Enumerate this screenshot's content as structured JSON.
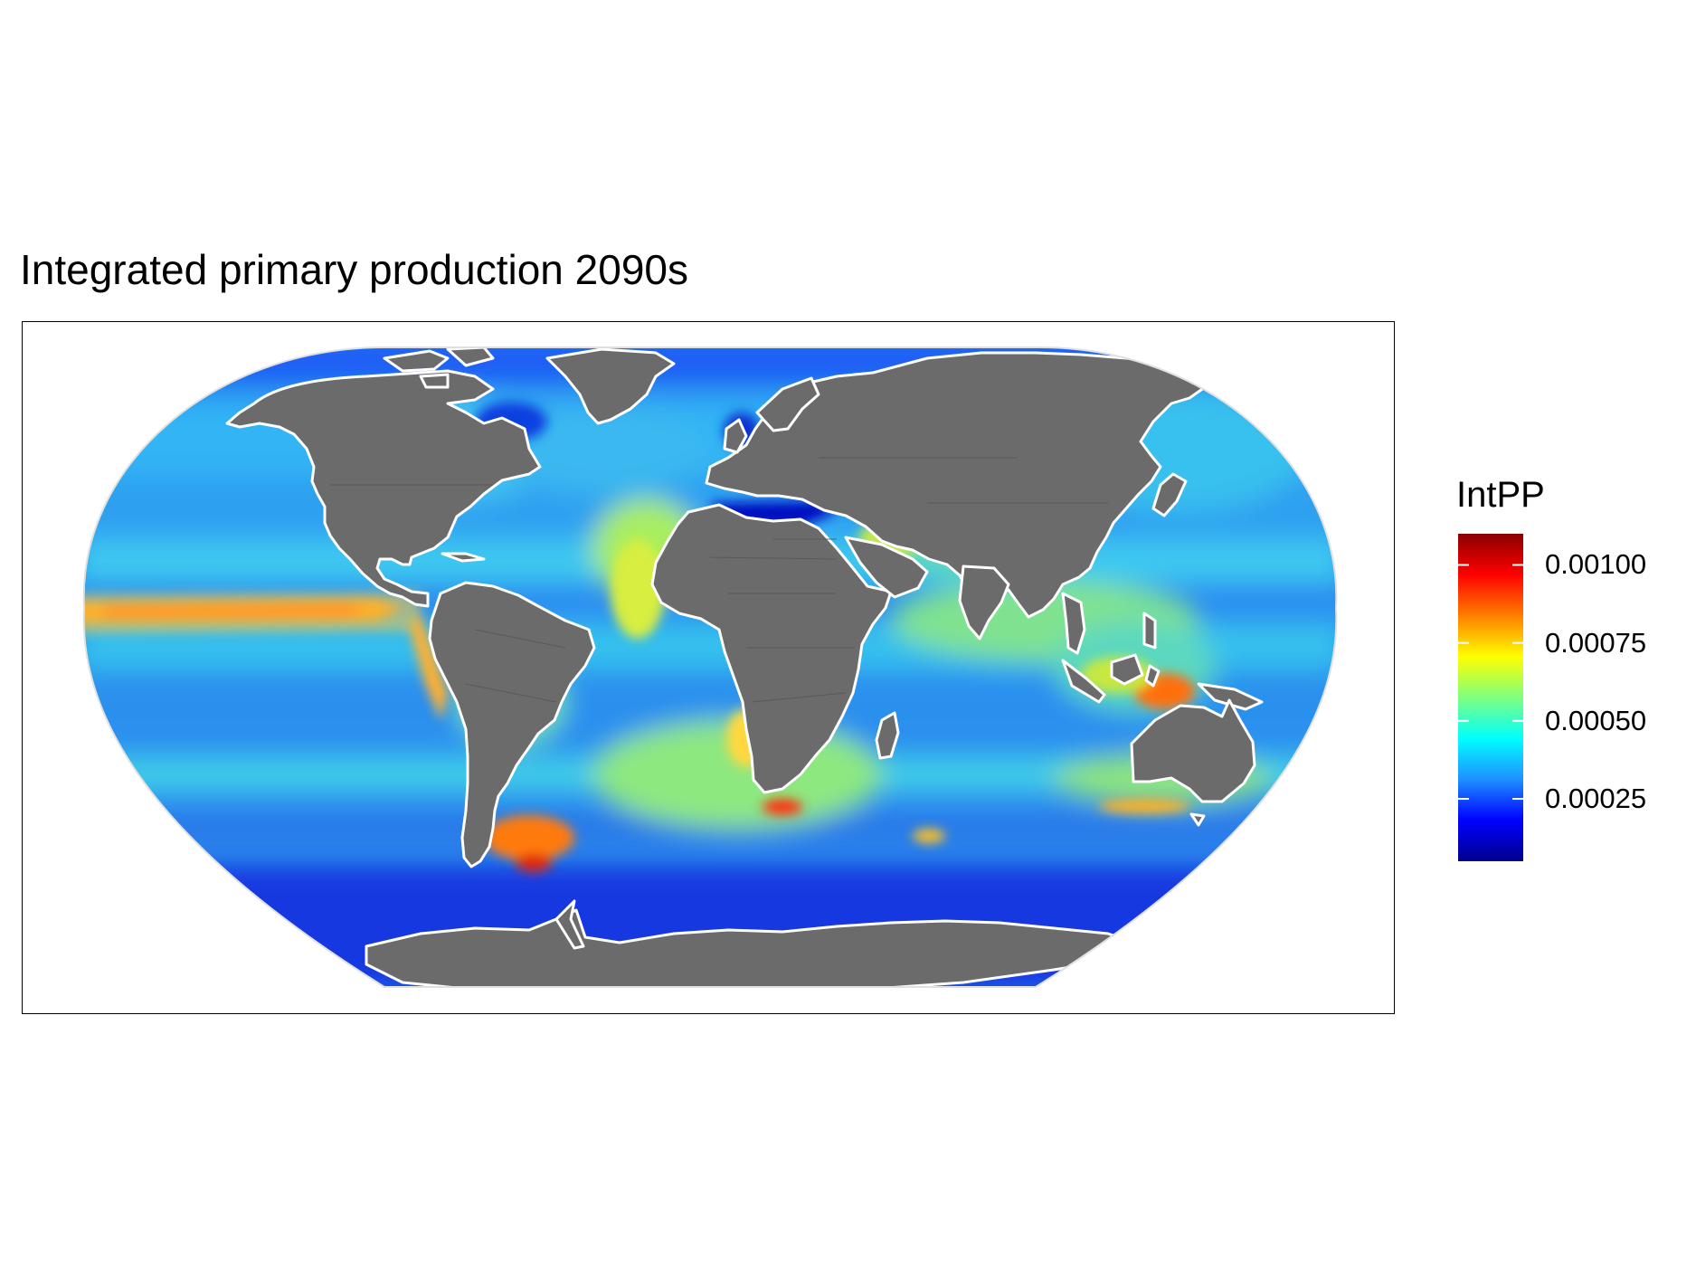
{
  "title": "Integrated primary production 2090s",
  "legend": {
    "title": "IntPP",
    "labels": [
      "0.00100",
      "0.00075",
      "0.00050",
      "0.00025"
    ],
    "min": 5e-05,
    "max": 0.0011,
    "ticks": [
      0.001,
      0.00075,
      0.0005,
      0.00025
    ],
    "colors": [
      "#00008b",
      "#0000ff",
      "#1e90ff",
      "#00ffff",
      "#7fff7f",
      "#ffff00",
      "#ff7f00",
      "#ff0000",
      "#8b0000"
    ]
  },
  "map": {
    "projection": "robinson",
    "land_color": "#6b6b6b",
    "coast_color": "#ffffff"
  }
}
